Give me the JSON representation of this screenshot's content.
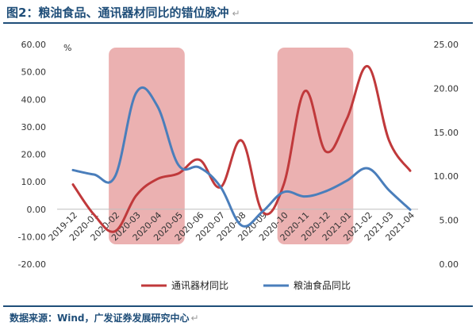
{
  "title": "图2：粮油食品、通讯器材同比的错位脉冲",
  "title_mark": "↵",
  "source": "数据来源：Wind，广发证券发展研究中心",
  "source_mark": "↵",
  "colors": {
    "header": "#1f4e79",
    "highlight": "#e8a3a3",
    "telecom": "#c0393b",
    "grain": "#4a7ebb"
  },
  "chart_data": {
    "type": "line",
    "unit_label": "%",
    "categories": [
      "2019-12",
      "2020-01",
      "2020-02",
      "2020-03",
      "2020-04",
      "2020-05",
      "2020-06",
      "2020-07",
      "2020-08",
      "2020-09",
      "2020-10",
      "2020-11",
      "2020-12",
      "2021-01",
      "2021-02",
      "2021-03",
      "2021-04"
    ],
    "left_axis": {
      "min": -20,
      "max": 60,
      "step": 10,
      "tick_labels": [
        "-20.00",
        "-10.00",
        "0.00",
        "10.00",
        "20.00",
        "30.00",
        "40.00",
        "50.00",
        "60.00"
      ]
    },
    "right_axis": {
      "min": 0,
      "max": 25,
      "step": 5,
      "tick_labels": [
        "0.00",
        "5.00",
        "10.00",
        "15.00",
        "20.00",
        "25.00"
      ]
    },
    "highlight_ranges": [
      {
        "from": "2020-02",
        "to": "2020-05"
      },
      {
        "from": "2020-10",
        "to": "2021-01"
      }
    ],
    "series": [
      {
        "name": "通讯器材同比",
        "axis": "left",
        "color": "#c0393b",
        "values": [
          9.0,
          -2.0,
          -8.0,
          5.0,
          11.0,
          13.0,
          18.0,
          8.0,
          25.0,
          -1.0,
          9.0,
          43.0,
          21.0,
          33.0,
          52.0,
          25.0,
          14.0
        ]
      },
      {
        "name": "粮油食品同比",
        "axis": "right",
        "color": "#4a7ebb",
        "values": [
          10.7,
          10.2,
          10.0,
          19.5,
          18.0,
          11.3,
          11.0,
          8.8,
          4.4,
          6.0,
          8.2,
          7.7,
          8.3,
          9.5,
          10.9,
          8.4,
          6.2
        ]
      }
    ],
    "grid": false,
    "legend_position": "bottom"
  }
}
